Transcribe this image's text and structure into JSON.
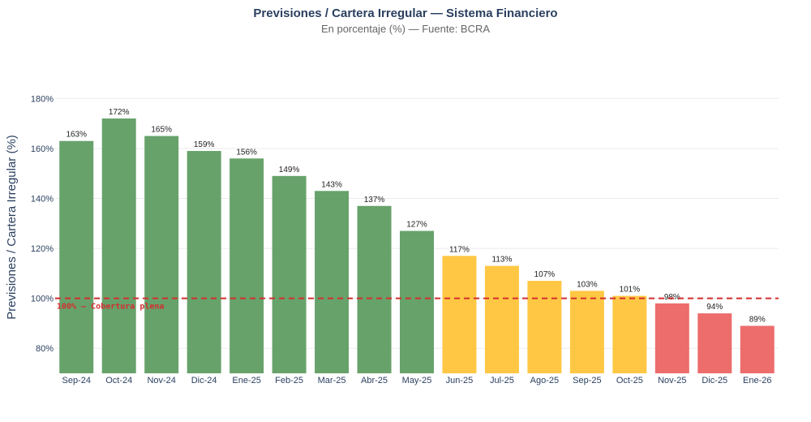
{
  "chart_data": {
    "type": "bar",
    "title": "Previsiones / Cartera Irregular — Sistema Financiero",
    "subtitle": "En porcentaje (%) — Fuente: BCRA",
    "xlabel": "",
    "ylabel": "Previsiones / Cartera Irregular (%)",
    "ylim": [
      70,
      185
    ],
    "yticks": [
      80,
      100,
      120,
      140,
      160,
      180
    ],
    "ytick_labels": [
      "80%",
      "100%",
      "120%",
      "140%",
      "160%",
      "180%"
    ],
    "grid": true,
    "categories": [
      "Sep-24",
      "Oct-24",
      "Nov-24",
      "Dic-24",
      "Ene-25",
      "Feb-25",
      "Mar-25",
      "Abr-25",
      "May-25",
      "Jun-25",
      "Jul-25",
      "Ago-25",
      "Sep-25",
      "Oct-25",
      "Nov-25",
      "Dic-25",
      "Ene-26"
    ],
    "values": [
      163,
      172,
      165,
      159,
      156,
      149,
      143,
      137,
      127,
      117,
      113,
      107,
      103,
      101,
      98,
      94,
      89
    ],
    "data_labels": [
      "163%",
      "172%",
      "165%",
      "159%",
      "156%",
      "149%",
      "143%",
      "137%",
      "127%",
      "117%",
      "113%",
      "107%",
      "103%",
      "101%",
      "98%",
      "94%",
      "89%"
    ],
    "colors": {
      "high": "#5a9a5e",
      "mid": "#ffc233",
      "low": "#ec5f5f",
      "reference": "#d32f2f"
    },
    "reference_line": {
      "value": 100,
      "label": "100% — Cobertura plena"
    }
  }
}
